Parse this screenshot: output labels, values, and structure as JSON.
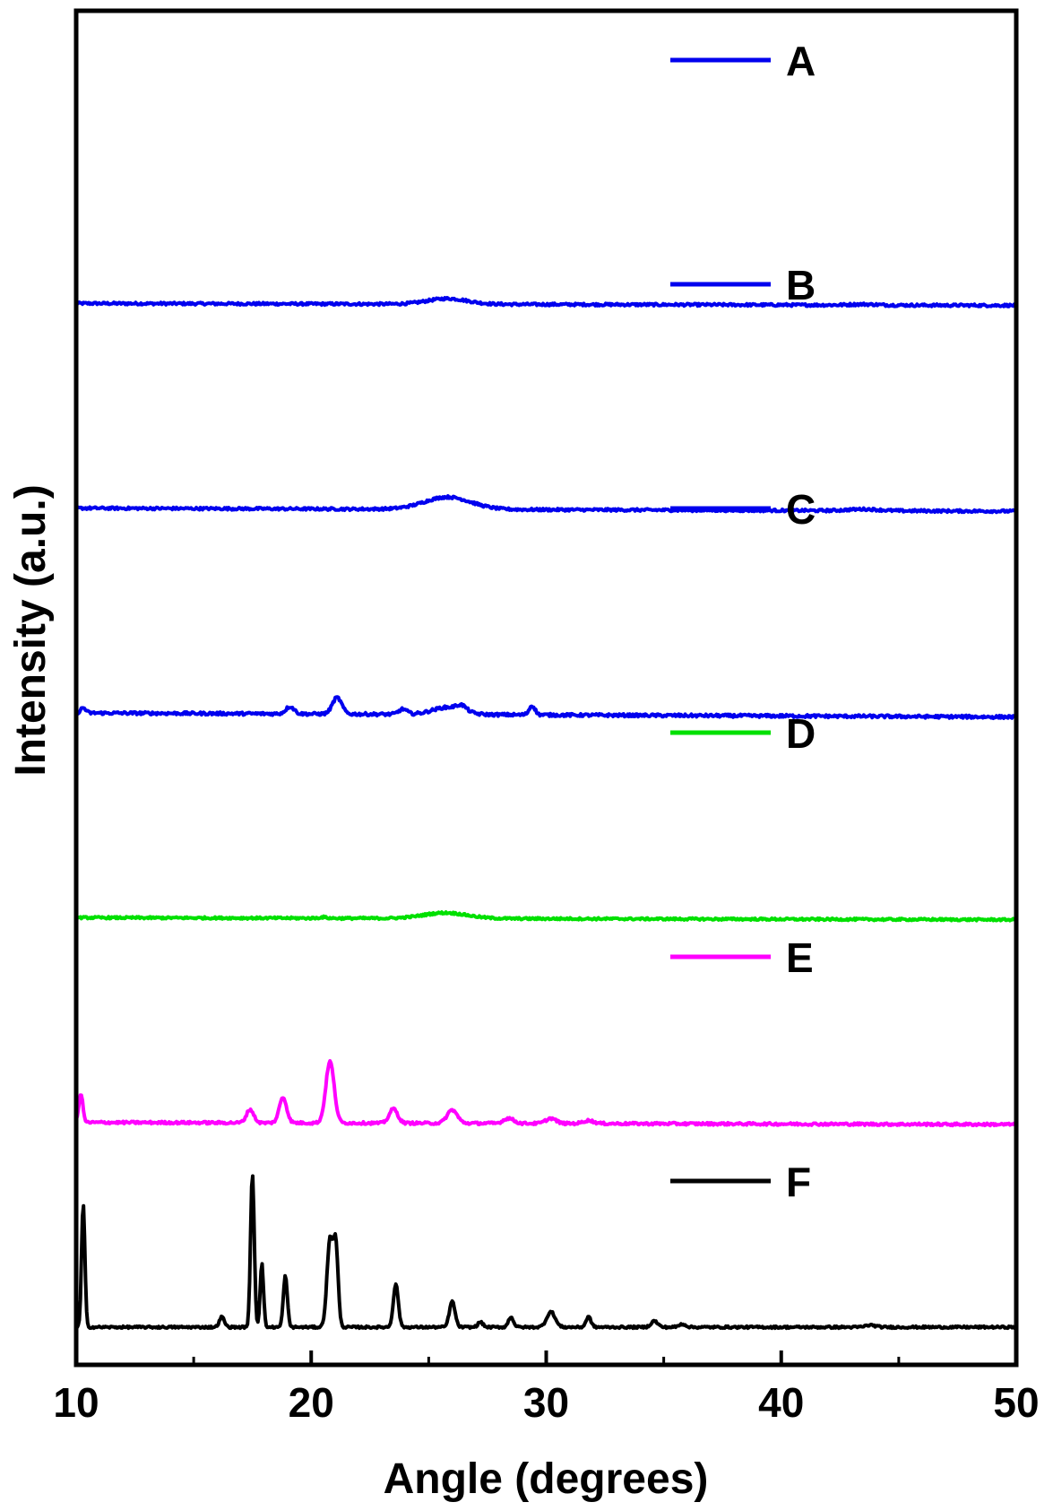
{
  "chart_data": {
    "type": "line",
    "xlabel": "Angle (degrees)",
    "ylabel": "Intensity (a.u.)",
    "xlim": [
      10,
      50
    ],
    "xticks": [
      10,
      20,
      30,
      40,
      50
    ],
    "xticks_minor": [
      15,
      25,
      35,
      45
    ],
    "yticks": [],
    "grid": false,
    "legend": "inline-right",
    "offset_stacked": true,
    "ylim": [
      0,
      12
    ],
    "series": [
      {
        "name": "A",
        "color": "#0000ee",
        "offset": 10.0,
        "noise": 0.012,
        "baseline": [
          [
            10,
            0.0
          ],
          [
            50,
            -0.02
          ]
        ],
        "peaks": [
          [
            25.8,
            0.055,
            1.2
          ],
          [
            43.5,
            0.008,
            0.8
          ]
        ]
      },
      {
        "name": "B",
        "color": "#0000ee",
        "offset": 8.0,
        "noise": 0.012,
        "baseline": [
          [
            10,
            0.0
          ],
          [
            50,
            -0.03
          ]
        ],
        "peaks": [
          [
            25.8,
            0.12,
            1.4
          ],
          [
            43.5,
            0.015,
            0.9
          ]
        ]
      },
      {
        "name": "C",
        "color": "#0000ee",
        "offset": 6.0,
        "noise": 0.014,
        "baseline": [
          [
            10,
            0.0
          ],
          [
            50,
            -0.04
          ]
        ],
        "peaks": [
          [
            10.3,
            0.05,
            0.15
          ],
          [
            19.1,
            0.07,
            0.25
          ],
          [
            21.1,
            0.16,
            0.28
          ],
          [
            23.9,
            0.05,
            0.25
          ],
          [
            25.8,
            0.07,
            0.9
          ],
          [
            26.4,
            0.05,
            0.3
          ],
          [
            29.4,
            0.09,
            0.18
          ]
        ]
      },
      {
        "name": "D",
        "color": "#00e000",
        "offset": 4.0,
        "noise": 0.01,
        "baseline": [
          [
            10,
            0.0
          ],
          [
            50,
            -0.02
          ]
        ],
        "peaks": [
          [
            25.7,
            0.055,
            1.3
          ],
          [
            20.5,
            0.01,
            0.2
          ]
        ]
      },
      {
        "name": "E",
        "color": "#ff00ff",
        "offset": 2.0,
        "noise": 0.012,
        "baseline": [
          [
            10,
            0.0
          ],
          [
            50,
            -0.02
          ]
        ],
        "peaks": [
          [
            10.2,
            0.28,
            0.12
          ],
          [
            17.4,
            0.13,
            0.22
          ],
          [
            18.8,
            0.25,
            0.22
          ],
          [
            20.8,
            0.6,
            0.25
          ],
          [
            23.5,
            0.14,
            0.25
          ],
          [
            26.0,
            0.13,
            0.3
          ],
          [
            28.4,
            0.05,
            0.3
          ],
          [
            30.2,
            0.05,
            0.3
          ],
          [
            31.8,
            0.03,
            0.3
          ]
        ]
      },
      {
        "name": "F",
        "color": "#000000",
        "offset": 0.0,
        "noise": 0.01,
        "baseline": [
          [
            10,
            0.0
          ],
          [
            50,
            0.0
          ]
        ],
        "peaks": [
          [
            10.3,
            1.2,
            0.1
          ],
          [
            16.2,
            0.1,
            0.15
          ],
          [
            17.5,
            1.5,
            0.11
          ],
          [
            17.9,
            0.62,
            0.1
          ],
          [
            18.9,
            0.5,
            0.12
          ],
          [
            20.8,
            0.85,
            0.18
          ],
          [
            21.05,
            0.75,
            0.14
          ],
          [
            23.6,
            0.42,
            0.15
          ],
          [
            26.0,
            0.25,
            0.17
          ],
          [
            27.2,
            0.05,
            0.15
          ],
          [
            28.5,
            0.1,
            0.15
          ],
          [
            30.2,
            0.15,
            0.25
          ],
          [
            31.8,
            0.1,
            0.15
          ],
          [
            34.6,
            0.06,
            0.2
          ],
          [
            35.8,
            0.03,
            0.2
          ],
          [
            43.8,
            0.02,
            0.3
          ]
        ]
      }
    ]
  }
}
